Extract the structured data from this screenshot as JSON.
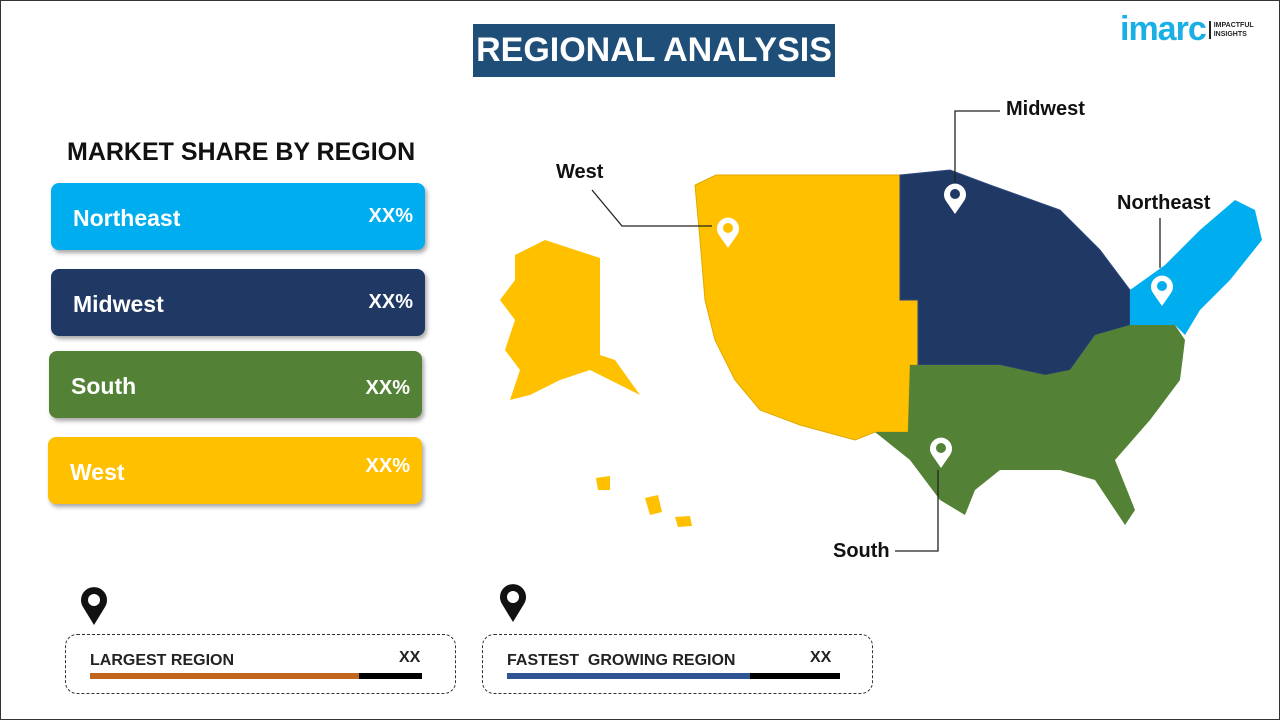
{
  "title": "REGIONAL ANALYSIS",
  "logo": {
    "brand": "imarc",
    "tagline_1": "IMPACTFUL",
    "tagline_2": "INSIGHTS"
  },
  "subtitle": "MARKET SHARE BY REGION",
  "regions": [
    {
      "name": "Northeast",
      "value": "XX%",
      "color": "#00aeef"
    },
    {
      "name": "Midwest",
      "value": "XX%",
      "color": "#1f3864"
    },
    {
      "name": "South",
      "value": "XX%",
      "color": "#538135"
    },
    {
      "name": "West",
      "value": "XX%",
      "color": "#ffc000"
    }
  ],
  "map_labels": {
    "west": "West",
    "midwest": "Midwest",
    "northeast": "Northeast",
    "south": "South"
  },
  "summary": [
    {
      "label": "LARGEST REGION",
      "value": "XX",
      "fill_percent": 81,
      "color": "#c0651e"
    },
    {
      "label": "FASTEST  GROWING REGION",
      "value": "XX",
      "fill_percent": 73,
      "color": "#2f5597"
    }
  ],
  "icons": [
    "location-pin-icon"
  ]
}
